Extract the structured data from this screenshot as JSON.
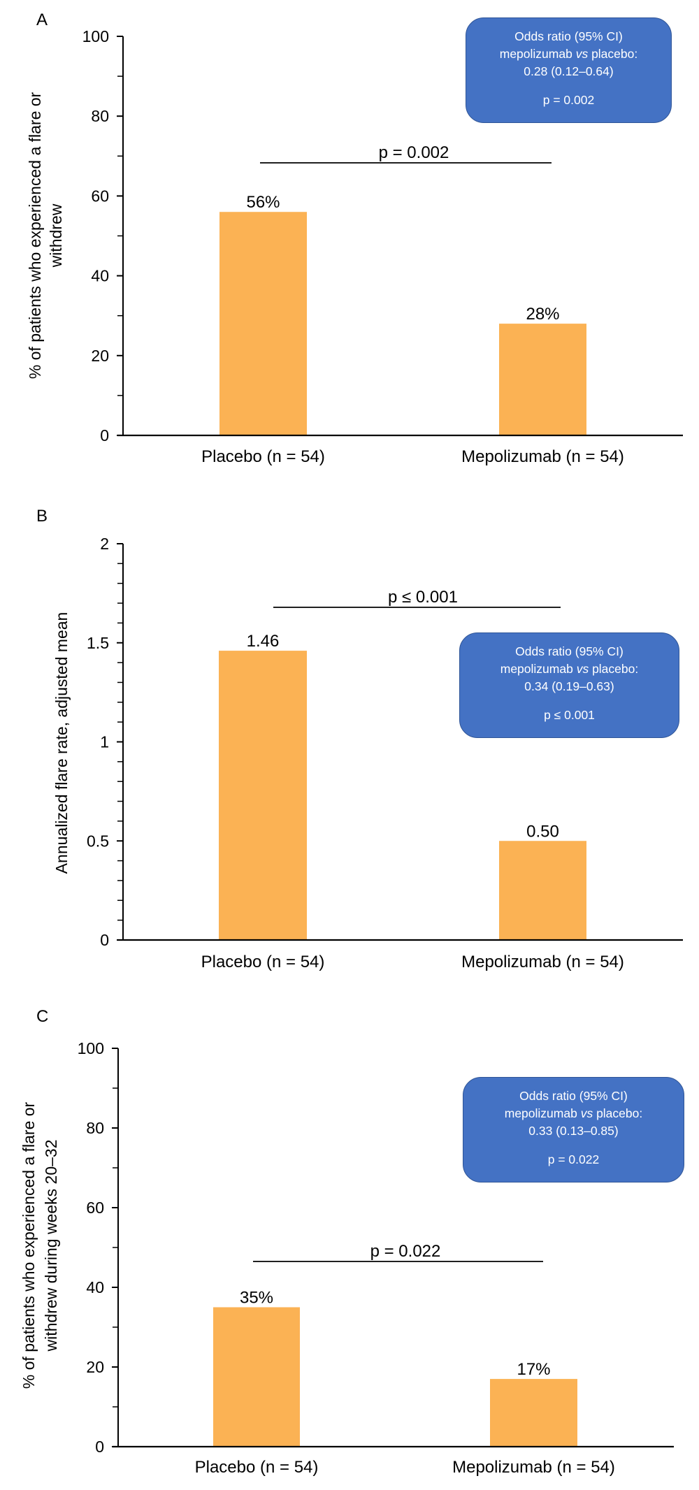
{
  "colors": {
    "bar": "#FBB254",
    "box": "#4472C4",
    "box_border": "#2F5597",
    "axis": "#000000"
  },
  "chart_data": [
    {
      "panel": "A",
      "type": "bar",
      "categories": [
        "Placebo (n = 54)",
        "Mepolizumab (n = 54)"
      ],
      "values": [
        56,
        28
      ],
      "value_labels": [
        "56%",
        "28%"
      ],
      "ylabel_lines": [
        "% of patients who experienced a flare or",
        "withdrew"
      ],
      "ylim": [
        0,
        100
      ],
      "yticks": [
        0,
        20,
        40,
        60,
        80,
        100
      ],
      "ytick_labels": [
        "0",
        "20",
        "40",
        "60",
        "80",
        "100"
      ],
      "minor_step": 10,
      "significance": "p = 0.002",
      "callout": {
        "line1": "Odds ratio (95% CI)",
        "line2_pre": "mepolizumab ",
        "line2_italic": "vs",
        "line2_post": " placebo:",
        "line3": "0.28 (0.12–0.64)",
        "p": "p = 0.002"
      },
      "grid": false
    },
    {
      "panel": "B",
      "type": "bar",
      "categories": [
        "Placebo (n = 54)",
        "Mepolizumab (n = 54)"
      ],
      "values": [
        1.46,
        0.5
      ],
      "value_labels": [
        "1.46",
        "0.50"
      ],
      "ylabel_lines": [
        "Annualized flare rate, adjusted mean"
      ],
      "ylim": [
        0,
        2
      ],
      "yticks": [
        0,
        0.5,
        1,
        1.5,
        2
      ],
      "ytick_labels": [
        "0",
        "0.5",
        "1",
        "1.5",
        "2"
      ],
      "minor_step": 0.1,
      "significance": "p ≤ 0.001",
      "callout": {
        "line1": "Odds ratio (95% CI)",
        "line2_pre": "mepolizumab ",
        "line2_italic": "vs",
        "line2_post": " placebo:",
        "line3": "0.34 (0.19–0.63)",
        "p": "p ≤ 0.001"
      },
      "grid": false
    },
    {
      "panel": "C",
      "type": "bar",
      "categories": [
        "Placebo (n = 54)",
        "Mepolizumab (n = 54)"
      ],
      "values": [
        35,
        17
      ],
      "value_labels": [
        "35%",
        "17%"
      ],
      "ylabel_lines": [
        "% of patients who experienced a flare or",
        "withdrew during weeks 20–32"
      ],
      "ylim": [
        0,
        100
      ],
      "yticks": [
        0,
        20,
        40,
        60,
        80,
        100
      ],
      "ytick_labels": [
        "0",
        "20",
        "40",
        "60",
        "80",
        "100"
      ],
      "minor_step": 10,
      "significance": "p = 0.022",
      "callout": {
        "line1": "Odds ratio (95% CI)",
        "line2_pre": "mepolizumab ",
        "line2_italic": "vs",
        "line2_post": " placebo:",
        "line3": "0.33 (0.13–0.85)",
        "p": "p = 0.022"
      },
      "grid": false
    }
  ]
}
